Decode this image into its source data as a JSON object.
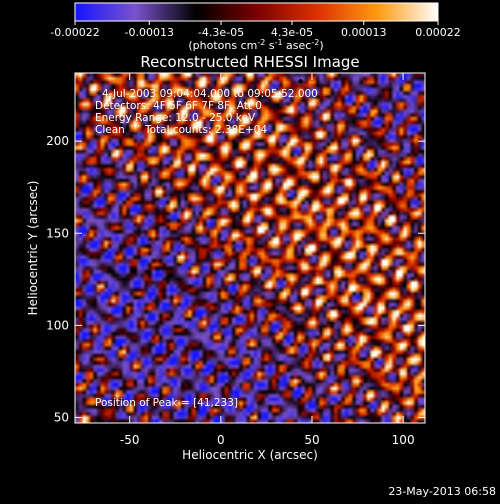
{
  "chart_data": {
    "type": "heatmap",
    "title": "Reconstructed RHESSI Image",
    "xlabel": "Heliocentric X (arcsec)",
    "ylabel": "Heliocentric Y (arcsec)",
    "xlim": [
      -80,
      112
    ],
    "ylim": [
      47,
      237
    ],
    "x_ticks": [
      {
        "value": -50,
        "label": "-50"
      },
      {
        "value": 0,
        "label": "0"
      },
      {
        "value": 50,
        "label": "50"
      },
      {
        "value": 100,
        "label": "100"
      }
    ],
    "y_ticks": [
      {
        "value": 50,
        "label": "50"
      },
      {
        "value": 100,
        "label": "100"
      },
      {
        "value": 150,
        "label": "150"
      },
      {
        "value": 200,
        "label": "200"
      }
    ],
    "colorbar": {
      "range": [
        -0.00022,
        0.00022
      ],
      "tick_labels": [
        "-0.00022",
        "-0.00013",
        "-4.3e-05",
        "4.3e-05",
        "0.00013",
        "0.00022"
      ],
      "unit_label": {
        "open": "(photons cm",
        "exp1": "-2",
        "mid1": " s",
        "exp2": "-1",
        "mid2": " asec",
        "exp3": "-2",
        "close": ")"
      },
      "colors": [
        "#1515ff",
        "#7a52cc",
        "#000000",
        "#7a0000",
        "#dd3000",
        "#ff9a10",
        "#ffffff"
      ]
    },
    "annotations": {
      "time_range": "4-Jul-2003 09:04:04.000 to 09:05:52.000",
      "detectors": "Detectors: 4F 5F 6F 7F 8F, Att 0",
      "energy_range": "Energy Range: 12.0 - 25.0 keV",
      "method": "Clean",
      "total_counts": "Total counts: 2.38E+04",
      "peak": "Position of Peak = [41,233]"
    },
    "peak_position": [
      41,
      233
    ],
    "footer_date": "23-May-2013 06:58"
  }
}
